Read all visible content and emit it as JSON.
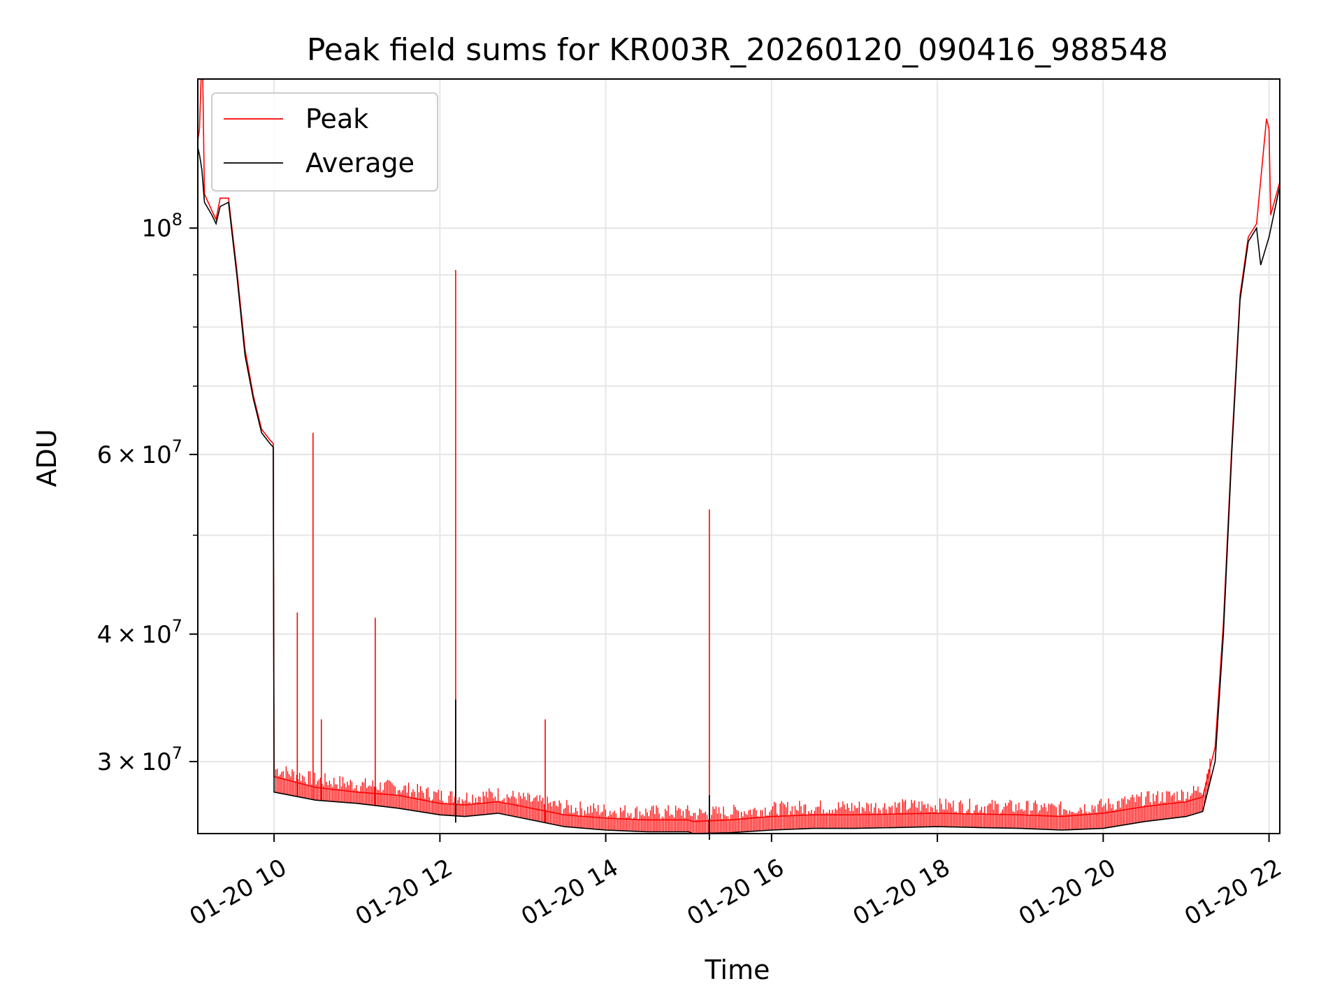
{
  "chart_data": {
    "type": "line",
    "title": "Peak field sums for KR003R_20260120_090416_988548",
    "xlabel": "Time",
    "ylabel": "ADU",
    "yscale": "log",
    "xlim_hours": [
      9.08,
      22.13
    ],
    "ylim": [
      25500000,
      140000000
    ],
    "grid": true,
    "legend_position": "top-left",
    "x_ticks": [
      {
        "value": 10,
        "label": "01-20 10"
      },
      {
        "value": 12,
        "label": "01-20 12"
      },
      {
        "value": 14,
        "label": "01-20 14"
      },
      {
        "value": 16,
        "label": "01-20 16"
      },
      {
        "value": 18,
        "label": "01-20 18"
      },
      {
        "value": 20,
        "label": "01-20 20"
      },
      {
        "value": 22,
        "label": "01-20 22"
      }
    ],
    "y_ticks": [
      {
        "value": 30000000,
        "mantissa": "3",
        "exponent": "7"
      },
      {
        "value": 40000000,
        "mantissa": "4",
        "exponent": "7"
      },
      {
        "value": 60000000,
        "mantissa": "6",
        "exponent": "7"
      },
      {
        "value": 100000000,
        "mantissa": "",
        "exponent": "8"
      }
    ],
    "y_minor_ticks": [
      30000000,
      40000000,
      50000000,
      60000000,
      70000000,
      80000000,
      90000000
    ],
    "colors": {
      "peak": "#ff0000",
      "average": "#000000",
      "grid": "#e6e6e6"
    },
    "series": [
      {
        "name": "Average",
        "color": "#000000",
        "points": [
          [
            9.08,
            120000000
          ],
          [
            9.1,
            118000000
          ],
          [
            9.13,
            114000000
          ],
          [
            9.16,
            106000000
          ],
          [
            9.25,
            103000000
          ],
          [
            9.3,
            101000000
          ],
          [
            9.35,
            105000000
          ],
          [
            9.45,
            106000000
          ],
          [
            9.55,
            90000000
          ],
          [
            9.65,
            75000000
          ],
          [
            9.75,
            68000000
          ],
          [
            9.85,
            63000000
          ],
          [
            9.95,
            61500000
          ],
          [
            9.99,
            61000000
          ],
          [
            10.0,
            28000000
          ],
          [
            10.5,
            27500000
          ],
          [
            11.0,
            27300000
          ],
          [
            11.5,
            27000000
          ],
          [
            12.0,
            26600000
          ],
          [
            12.3,
            26500000
          ],
          [
            12.7,
            26700000
          ],
          [
            13.0,
            26400000
          ],
          [
            13.5,
            25900000
          ],
          [
            14.0,
            25700000
          ],
          [
            14.5,
            25600000
          ],
          [
            15.0,
            25600000
          ],
          [
            15.05,
            25500000
          ],
          [
            15.5,
            25550000
          ],
          [
            16.0,
            25700000
          ],
          [
            16.5,
            25800000
          ],
          [
            17.0,
            25800000
          ],
          [
            17.5,
            25850000
          ],
          [
            18.0,
            25900000
          ],
          [
            18.5,
            25850000
          ],
          [
            19.0,
            25800000
          ],
          [
            19.5,
            25700000
          ],
          [
            20.0,
            25800000
          ],
          [
            20.5,
            26200000
          ],
          [
            21.0,
            26500000
          ],
          [
            21.2,
            26800000
          ],
          [
            21.35,
            30000000
          ],
          [
            21.45,
            40000000
          ],
          [
            21.55,
            60000000
          ],
          [
            21.65,
            85000000
          ],
          [
            21.75,
            97000000
          ],
          [
            21.85,
            100000000
          ],
          [
            21.9,
            92000000
          ],
          [
            22.0,
            98000000
          ],
          [
            22.13,
            110000000
          ]
        ]
      },
      {
        "name": "Peak",
        "color": "#ff0000",
        "points": [
          [
            9.08,
            122000000
          ],
          [
            9.1,
            125000000
          ],
          [
            9.12,
            140000000
          ],
          [
            9.14,
            140000000
          ],
          [
            9.16,
            108000000
          ],
          [
            9.25,
            104000000
          ],
          [
            9.3,
            102000000
          ],
          [
            9.35,
            107000000
          ],
          [
            9.45,
            107000000
          ],
          [
            9.55,
            91000000
          ],
          [
            9.65,
            76000000
          ],
          [
            9.75,
            68500000
          ],
          [
            9.85,
            63500000
          ],
          [
            9.95,
            62000000
          ],
          [
            9.99,
            61500000
          ],
          [
            10.0,
            29000000
          ],
          [
            10.5,
            28300000
          ],
          [
            11.0,
            28000000
          ],
          [
            11.5,
            27800000
          ],
          [
            12.0,
            27300000
          ],
          [
            12.3,
            27200000
          ],
          [
            12.7,
            27400000
          ],
          [
            13.0,
            27100000
          ],
          [
            13.5,
            26600000
          ],
          [
            14.0,
            26400000
          ],
          [
            14.5,
            26300000
          ],
          [
            15.0,
            26300000
          ],
          [
            15.05,
            26200000
          ],
          [
            15.5,
            26300000
          ],
          [
            16.0,
            26500000
          ],
          [
            16.5,
            26600000
          ],
          [
            17.0,
            26600000
          ],
          [
            17.5,
            26650000
          ],
          [
            18.0,
            26700000
          ],
          [
            18.5,
            26650000
          ],
          [
            19.0,
            26600000
          ],
          [
            19.5,
            26500000
          ],
          [
            20.0,
            26700000
          ],
          [
            20.5,
            27100000
          ],
          [
            21.0,
            27400000
          ],
          [
            21.2,
            27700000
          ],
          [
            21.35,
            31000000
          ],
          [
            21.45,
            41000000
          ],
          [
            21.55,
            61000000
          ],
          [
            21.65,
            86000000
          ],
          [
            21.75,
            98000000
          ],
          [
            21.85,
            101000000
          ],
          [
            21.97,
            128000000
          ],
          [
            22.0,
            125000000
          ],
          [
            22.02,
            103000000
          ],
          [
            22.13,
            111000000
          ]
        ],
        "spikes": [
          [
            10.28,
            42000000
          ],
          [
            10.47,
            63000000
          ],
          [
            10.57,
            33000000
          ],
          [
            11.22,
            41500000
          ],
          [
            12.19,
            91000000
          ],
          [
            13.27,
            33000000
          ],
          [
            15.25,
            53000000
          ]
        ]
      }
    ],
    "average_spikes": [
      [
        12.19,
        34500000
      ],
      [
        15.25,
        27800000
      ]
    ],
    "legend": [
      {
        "label": "Peak",
        "color": "#ff0000"
      },
      {
        "label": "Average",
        "color": "#000000"
      }
    ]
  }
}
